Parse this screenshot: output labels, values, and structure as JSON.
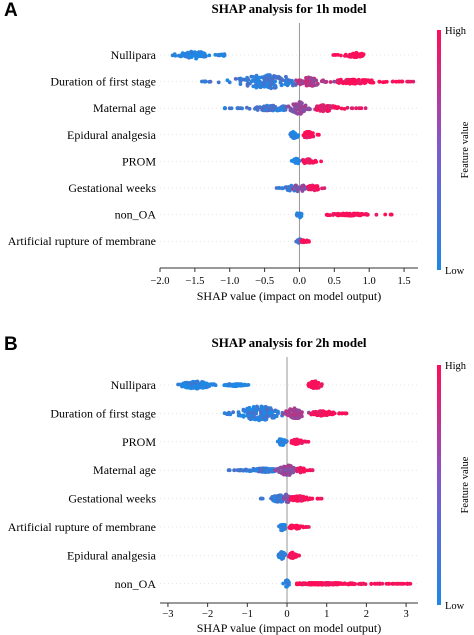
{
  "colors": {
    "low": "#1e88e5",
    "high": "#ff0d57",
    "zero_line": "#999999",
    "axis": "#333333"
  },
  "chart_data": [
    {
      "type": "scatter",
      "subtype": "shap-beeswarm",
      "panel": "A",
      "title": "SHAP analysis for 1h model",
      "xlabel": "SHAP value (impact on model output)",
      "xlim": [
        -2.0,
        1.7
      ],
      "xticks": [
        -2.0,
        -1.5,
        -1.0,
        -0.5,
        0.0,
        0.5,
        1.0,
        1.5
      ],
      "xtick_labels": [
        "−2.0",
        "−1.5",
        "−1.0",
        "−0.5",
        "0.0",
        "0.5",
        "1.0",
        "1.5"
      ],
      "colorbar": {
        "label": "Feature value",
        "high": "High",
        "low": "Low"
      },
      "features": [
        {
          "name": "Nullipara",
          "clusters": [
            {
              "min": -1.85,
              "max": -1.15,
              "center": -1.5,
              "width": 0.16,
              "color": 0.0
            },
            {
              "min": -1.15,
              "max": -1.05,
              "center": -1.1,
              "width": 0.05,
              "color": 0.0
            },
            {
              "min": 0.45,
              "max": 0.92,
              "center": 0.8,
              "width": 0.1,
              "color": 1.0
            }
          ]
        },
        {
          "name": "Duration of first stage",
          "clusters": [
            {
              "min": -1.45,
              "max": -0.05,
              "center": -0.45,
              "width": 0.3,
              "color": 0.1
            },
            {
              "min": -0.05,
              "max": 0.55,
              "center": 0.15,
              "width": 0.2,
              "color": 0.65
            },
            {
              "min": 0.55,
              "max": 1.65,
              "center": 0.75,
              "width": 0.1,
              "color": 0.95
            }
          ]
        },
        {
          "name": "Maternal age",
          "clusters": [
            {
              "min": -1.1,
              "max": -0.2,
              "center": -0.4,
              "width": 0.12,
              "color": 0.1
            },
            {
              "min": -0.2,
              "max": 0.25,
              "center": 0.02,
              "width": 0.28,
              "color": 0.5
            },
            {
              "min": 0.25,
              "max": 0.95,
              "center": 0.35,
              "width": 0.14,
              "color": 0.9
            }
          ]
        },
        {
          "name": "Epidural analgesia",
          "clusters": [
            {
              "min": -0.15,
              "max": 0.0,
              "center": -0.07,
              "width": 0.16,
              "color": 0.0
            },
            {
              "min": 0.05,
              "max": 0.3,
              "center": 0.12,
              "width": 0.14,
              "color": 1.0
            }
          ]
        },
        {
          "name": "PROM",
          "clusters": [
            {
              "min": -0.12,
              "max": 0.0,
              "center": -0.05,
              "width": 0.15,
              "color": 0.0
            },
            {
              "min": 0.05,
              "max": 0.35,
              "center": 0.12,
              "width": 0.1,
              "color": 1.0
            }
          ]
        },
        {
          "name": "Gestational weeks",
          "clusters": [
            {
              "min": -0.35,
              "max": -0.05,
              "center": -0.1,
              "width": 0.14,
              "color": 0.1
            },
            {
              "min": -0.1,
              "max": 0.1,
              "center": 0.0,
              "width": 0.18,
              "color": 0.5
            },
            {
              "min": 0.1,
              "max": 0.4,
              "center": 0.2,
              "width": 0.12,
              "color": 0.95
            }
          ]
        },
        {
          "name": "non_OA",
          "clusters": [
            {
              "min": -0.05,
              "max": 0.03,
              "center": 0.0,
              "width": 0.14,
              "color": 0.0
            },
            {
              "min": 0.35,
              "max": 1.35,
              "center": 0.7,
              "width": 0.05,
              "color": 1.0
            }
          ]
        },
        {
          "name": "Artificial rupture of membrane",
          "clusters": [
            {
              "min": -0.05,
              "max": 0.02,
              "center": 0.0,
              "width": 0.1,
              "color": 0.2
            },
            {
              "min": 0.03,
              "max": 0.18,
              "center": 0.08,
              "width": 0.06,
              "color": 1.0
            }
          ]
        }
      ]
    },
    {
      "type": "scatter",
      "subtype": "shap-beeswarm",
      "panel": "B",
      "title": "SHAP analysis for 2h model",
      "xlabel": "SHAP value (impact on model output)",
      "xlim": [
        -3.2,
        3.3
      ],
      "xticks": [
        -3,
        -2,
        -1,
        0,
        1,
        2,
        3
      ],
      "xtick_labels": [
        "−3",
        "−2",
        "−1",
        "0",
        "1",
        "2",
        "3"
      ],
      "colorbar": {
        "label": "Feature value",
        "high": "High",
        "low": "Low"
      },
      "features": [
        {
          "name": "Nullipara",
          "clusters": [
            {
              "min": -2.75,
              "max": -1.6,
              "center": -2.3,
              "width": 0.15,
              "color": 0.0
            },
            {
              "min": -1.6,
              "max": -0.95,
              "center": -1.3,
              "width": 0.05,
              "color": 0.0
            },
            {
              "min": 0.5,
              "max": 0.95,
              "center": 0.7,
              "width": 0.16,
              "color": 1.0
            }
          ]
        },
        {
          "name": "Duration of first stage",
          "clusters": [
            {
              "min": -1.6,
              "max": -0.1,
              "center": -0.7,
              "width": 0.3,
              "color": 0.1
            },
            {
              "min": -0.1,
              "max": 0.6,
              "center": 0.2,
              "width": 0.22,
              "color": 0.6
            },
            {
              "min": 0.6,
              "max": 1.5,
              "center": 0.9,
              "width": 0.1,
              "color": 0.95
            }
          ]
        },
        {
          "name": "PROM",
          "clusters": [
            {
              "min": -0.25,
              "max": 0.0,
              "center": -0.12,
              "width": 0.16,
              "color": 0.0
            },
            {
              "min": 0.1,
              "max": 0.55,
              "center": 0.25,
              "width": 0.1,
              "color": 1.0
            }
          ]
        },
        {
          "name": "Maternal age",
          "clusters": [
            {
              "min": -1.5,
              "max": -0.3,
              "center": -0.6,
              "width": 0.08,
              "color": 0.1
            },
            {
              "min": -0.3,
              "max": 0.25,
              "center": 0.0,
              "width": 0.22,
              "color": 0.5
            },
            {
              "min": 0.25,
              "max": 0.65,
              "center": 0.35,
              "width": 0.1,
              "color": 0.95
            }
          ]
        },
        {
          "name": "Gestational weeks",
          "clusters": [
            {
              "min": -0.7,
              "max": -0.1,
              "center": -0.2,
              "width": 0.14,
              "color": 0.1
            },
            {
              "min": -0.1,
              "max": 0.1,
              "center": 0.0,
              "width": 0.2,
              "color": 0.45
            },
            {
              "min": 0.1,
              "max": 0.9,
              "center": 0.3,
              "width": 0.1,
              "color": 1.0
            }
          ]
        },
        {
          "name": "Artificial rupture of membrane",
          "clusters": [
            {
              "min": -0.25,
              "max": 0.0,
              "center": -0.12,
              "width": 0.14,
              "color": 0.05
            },
            {
              "min": 0.05,
              "max": 0.55,
              "center": 0.2,
              "width": 0.08,
              "color": 1.0
            }
          ]
        },
        {
          "name": "Epidural analgesia",
          "clusters": [
            {
              "min": -0.25,
              "max": 0.0,
              "center": -0.12,
              "width": 0.16,
              "color": 0.0
            },
            {
              "min": 0.05,
              "max": 0.35,
              "center": 0.15,
              "width": 0.12,
              "color": 1.0
            }
          ]
        },
        {
          "name": "non_OA",
          "clusters": [
            {
              "min": -0.1,
              "max": 0.05,
              "center": 0.0,
              "width": 0.16,
              "color": 0.0
            },
            {
              "min": 0.25,
              "max": 3.15,
              "center": 0.9,
              "width": 0.04,
              "color": 1.0
            }
          ]
        }
      ]
    }
  ]
}
